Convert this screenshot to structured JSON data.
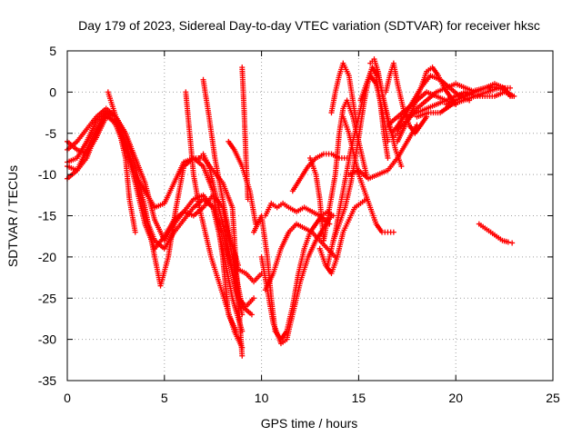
{
  "chart_data": {
    "type": "scatter",
    "title": "Day 179 of 2023, Sidereal Day-to-day VTEC variation (SDTVAR) for receiver hksc",
    "xlabel": "GPS time / hours",
    "ylabel": "SDTVAR / TECUs",
    "xlim": [
      0,
      25
    ],
    "ylim": [
      -35,
      5
    ],
    "xticks": [
      0,
      5,
      10,
      15,
      20,
      25
    ],
    "yticks": [
      -35,
      -30,
      -25,
      -20,
      -15,
      -10,
      -5,
      0,
      5
    ],
    "grid": true,
    "marker": "+",
    "color": "#ff0000",
    "series": [
      {
        "x": [
          0,
          0.5,
          1,
          1.5,
          2,
          2.5,
          3,
          3.5,
          4,
          4.5,
          5,
          5.5,
          6,
          6.5,
          7,
          7.5,
          8,
          8.5,
          9
        ],
        "y": [
          -6,
          -7,
          -7.5,
          -5.5,
          -3,
          -3.5,
          -6,
          -10,
          -15,
          -18,
          -19,
          -17,
          -15.5,
          -14,
          -13,
          -14,
          -17,
          -22,
          -27
        ]
      },
      {
        "x": [
          0,
          0.5,
          1,
          1.5,
          2,
          2.5,
          3,
          3.5,
          4,
          4.5,
          4.8,
          5.2,
          5.6,
          6,
          6.5,
          7,
          7.5,
          8,
          8.5,
          8.8,
          9
        ],
        "y": [
          -10.5,
          -9.5,
          -7,
          -4.5,
          -2.5,
          -3,
          -5,
          -9,
          -14,
          -20,
          -23.5,
          -20,
          -14,
          -9,
          -8,
          -8,
          -9.5,
          -11,
          -14,
          -25,
          -32
        ]
      },
      {
        "x": [
          0,
          0.5,
          1,
          1.5,
          2,
          2.5,
          3,
          3.5,
          4,
          4.5,
          5,
          5.5,
          6,
          6.5,
          7,
          7.5,
          8,
          8.3,
          8.7
        ],
        "y": [
          -8.5,
          -8,
          -6,
          -3.5,
          -2.5,
          -4,
          -7,
          -10,
          -12,
          -14,
          -13.5,
          -11,
          -8.5,
          -8,
          -9,
          -12,
          -20,
          -27,
          -29
        ]
      },
      {
        "x": [
          0,
          0.5,
          1,
          1.5,
          2,
          2.5,
          3,
          3.5,
          4,
          4.5,
          5,
          5.5,
          6,
          6.5,
          7,
          7.5,
          8,
          8.5,
          9
        ],
        "y": [
          -7,
          -6,
          -4.5,
          -3,
          -2,
          -3,
          -5,
          -8,
          -11,
          -15.5,
          -18,
          -16,
          -14.5,
          -13,
          -12.5,
          -14,
          -19,
          -25,
          -29
        ]
      },
      {
        "x": [
          0,
          0.5,
          1,
          1.5,
          2,
          2.5,
          3,
          3.5,
          4,
          4.5,
          5,
          5.5,
          6,
          6.5,
          7,
          7.5,
          8,
          8.5,
          9,
          9.5
        ],
        "y": [
          -9,
          -9.5,
          -8,
          -5,
          -3,
          -3.5,
          -6.5,
          -11,
          -16,
          -19,
          -17.5,
          -15.5,
          -14.5,
          -15,
          -14,
          -12.5,
          -14,
          -20,
          -26,
          -27
        ]
      },
      {
        "x": [
          2.1,
          2.5,
          3,
          3.2,
          3.5
        ],
        "y": [
          0,
          -3,
          -8,
          -13,
          -17
        ]
      },
      {
        "x": [
          6.1,
          6.3,
          6.5,
          6.8,
          7.1,
          7.4,
          7.8,
          8.2,
          8.6,
          9.0
        ],
        "y": [
          0,
          -5,
          -10,
          -14,
          -17,
          -20,
          -23,
          -26,
          -29,
          -31
        ]
      },
      {
        "x": [
          6.8,
          7.0,
          7.3,
          7.6,
          7.9,
          8.2,
          8.5,
          8.8,
          9.2,
          9.6
        ],
        "y": [
          -8,
          -7.5,
          -9,
          -12,
          -15,
          -18,
          -22,
          -25,
          -26,
          -25
        ]
      },
      {
        "x": [
          7.0,
          7.3,
          7.6,
          8.0,
          8.4,
          8.8
        ],
        "y": [
          1.5,
          -3,
          -8,
          -13,
          -18,
          -21
        ]
      },
      {
        "x": [
          8.3,
          8.6,
          9.0,
          9.4,
          9.7
        ],
        "y": [
          -6,
          -7,
          -9,
          -12,
          -16
        ]
      },
      {
        "x": [
          8.5,
          8.8,
          9.2,
          9.6,
          10.0
        ],
        "y": [
          -20,
          -21.5,
          -22,
          -23,
          -22
        ]
      },
      {
        "x": [
          9.0,
          9.1,
          9.2,
          9.3
        ],
        "y": [
          3,
          -2,
          -8,
          -13
        ]
      },
      {
        "x": [
          9.6,
          10.0,
          10.3,
          10.5,
          10.7,
          11.0,
          11.3,
          11.6,
          11.9,
          12.2,
          12.5,
          12.8,
          13.1,
          13.4,
          13.7
        ],
        "y": [
          -17,
          -15,
          -20,
          -25,
          -29,
          -30,
          -29,
          -26,
          -22,
          -19,
          -17,
          -16,
          -15,
          -14.5,
          -15
        ]
      },
      {
        "x": [
          10.0,
          10.3,
          10.6,
          11.0,
          11.3,
          11.6,
          12.0,
          12.4,
          12.8,
          13.2,
          13.6
        ],
        "y": [
          -20,
          -24,
          -28,
          -30.5,
          -30,
          -27,
          -23,
          -20,
          -18,
          -16.5,
          -15
        ]
      },
      {
        "x": [
          10.2,
          10.5,
          10.8,
          11.1,
          11.4,
          11.8,
          12.2,
          12.6,
          13.0,
          13.5
        ],
        "y": [
          -15,
          -13.5,
          -14,
          -13.5,
          -14,
          -14.5,
          -14,
          -14.5,
          -15,
          -16
        ]
      },
      {
        "x": [
          10.2,
          10.6,
          11.0,
          11.4,
          11.8,
          12.2,
          12.6,
          13.0,
          13.4,
          13.8
        ],
        "y": [
          -24,
          -22,
          -19,
          -17,
          -16,
          -16.5,
          -17,
          -18,
          -19,
          -20
        ]
      },
      {
        "x": [
          11.6,
          12.0,
          12.4,
          12.8,
          13.2,
          13.6,
          14.0,
          14.4
        ],
        "y": [
          -12,
          -10.5,
          -9,
          -8,
          -7.5,
          -7.5,
          -8,
          -8
        ]
      },
      {
        "x": [
          12.5,
          12.8,
          13.0,
          13.2
        ],
        "y": [
          -8,
          -10,
          -13,
          -18
        ]
      },
      {
        "x": [
          13.0,
          13.3,
          13.6,
          13.9,
          14.2,
          14.5,
          14.8,
          15.1,
          15.4
        ],
        "y": [
          -19,
          -21,
          -22,
          -20,
          -17,
          -15.5,
          -14,
          -13.5,
          -13
        ]
      },
      {
        "x": [
          13.2,
          13.5,
          13.8,
          14.0,
          14.2,
          14.4,
          14.7,
          15.0,
          15.4
        ],
        "y": [
          -18,
          -14,
          -10,
          -5,
          -2,
          -1,
          -3,
          -6,
          -10
        ]
      },
      {
        "x": [
          13.6,
          13.8,
          14.0,
          14.2,
          14.5,
          14.7,
          14.9
        ],
        "y": [
          -2.5,
          0,
          2,
          3.5,
          2,
          -1,
          -4
        ]
      },
      {
        "x": [
          13.7,
          14.0,
          14.3,
          14.6,
          14.9,
          15.1,
          15.3,
          15.5,
          15.7,
          15.9,
          16.1,
          16.3,
          16.5
        ],
        "y": [
          -18,
          -16,
          -14,
          -11,
          -7,
          -4,
          -1,
          1.5,
          3,
          2,
          -1,
          -5,
          -8
        ]
      },
      {
        "x": [
          13.4,
          13.8,
          14.2,
          14.6,
          15.0,
          15.3,
          15.6,
          15.9,
          16.2,
          16.5
        ],
        "y": [
          -21,
          -17,
          -12,
          -7,
          -3,
          0,
          2,
          1,
          -2,
          -6
        ]
      },
      {
        "x": [
          14.2,
          14.5,
          14.8,
          15.0,
          15.3,
          15.6,
          15.9,
          16.2,
          16.5,
          16.8
        ],
        "y": [
          -3,
          -5,
          -8,
          -10,
          -12,
          -14,
          -16,
          -17,
          -17,
          -17
        ]
      },
      {
        "x": [
          14.5,
          15.0,
          15.5,
          16.0,
          16.5,
          17.0,
          17.5,
          18.0
        ],
        "y": [
          -10,
          -9.5,
          -10.5,
          -10,
          -9.5,
          -8,
          -6,
          -4
        ]
      },
      {
        "x": [
          15.1,
          15.4,
          15.7,
          16.0,
          16.3,
          16.6,
          16.9,
          17.2
        ],
        "y": [
          -1,
          1,
          3,
          2,
          -1,
          -4,
          -7,
          -9
        ]
      },
      {
        "x": [
          15.6,
          15.8,
          16.0,
          16.2,
          16.4,
          16.6,
          16.8,
          17.0,
          17.2
        ],
        "y": [
          3.5,
          4,
          2.5,
          0,
          -2.5,
          -4.5,
          -5.5,
          -5,
          -3
        ]
      },
      {
        "x": [
          16.4,
          16.6,
          16.8,
          17.0,
          17.3,
          17.6,
          17.9,
          18.2,
          18.5
        ],
        "y": [
          0,
          2,
          3.5,
          1,
          -2,
          -4,
          -5,
          -4,
          -3
        ]
      },
      {
        "x": [
          16.5,
          17.0,
          17.5,
          18.0,
          18.5,
          19.0,
          19.5,
          20.0
        ],
        "y": [
          -4,
          -3,
          -2,
          -1,
          0,
          -0.5,
          -1,
          -1.5
        ]
      },
      {
        "x": [
          16.7,
          17.2,
          17.7,
          18.2,
          18.7,
          19.2,
          19.7,
          20.2,
          20.7
        ],
        "y": [
          -5,
          -3.5,
          -1.5,
          0.5,
          2,
          1.5,
          0.5,
          -0.5,
          -1
        ]
      },
      {
        "x": [
          17.0,
          17.4,
          17.8,
          18.2,
          18.5,
          18.8,
          19.1,
          19.4,
          19.7,
          20.0
        ],
        "y": [
          -6,
          -4,
          -2,
          0.5,
          2.5,
          3,
          2,
          0.5,
          -0.5,
          -1.5
        ]
      },
      {
        "x": [
          17.0,
          17.5,
          18.0,
          18.5,
          19.0,
          19.5,
          20.0,
          20.5,
          21.0
        ],
        "y": [
          -4.5,
          -3.5,
          -2,
          -1,
          0,
          0.5,
          1,
          0.5,
          0
        ]
      },
      {
        "x": [
          17.5,
          18.0,
          18.5,
          19.0,
          19.5,
          20.0,
          20.5,
          21.0,
          21.5,
          22.0,
          22.5,
          23.0
        ],
        "y": [
          -3,
          -2.5,
          -2,
          -1.5,
          -1,
          -0.5,
          0,
          -0.5,
          -0.5,
          -0.5,
          0,
          -0.5
        ]
      },
      {
        "x": [
          18.0,
          18.6,
          19.2,
          19.8,
          20.4,
          21.0,
          21.6,
          22.2,
          22.8
        ],
        "y": [
          -3,
          -2.5,
          -2.5,
          -1.5,
          -1,
          -0.5,
          0,
          0.5,
          0.5
        ]
      },
      {
        "x": [
          19.5,
          20.0,
          20.5,
          21.0,
          21.5,
          22.0,
          22.5,
          22.8
        ],
        "y": [
          -1.5,
          -1,
          -0.5,
          0,
          0.5,
          1,
          0.5,
          -0.5
        ]
      },
      {
        "x": [
          20.0,
          20.5,
          21.0,
          21.5,
          22.0,
          22.5,
          22.9
        ],
        "y": [
          -0.5,
          -0.3,
          0.2,
          0.5,
          0.6,
          0.3,
          -0.5
        ]
      },
      {
        "x": [
          21.2,
          21.5,
          21.8,
          22.1,
          22.4,
          22.7,
          22.9
        ],
        "y": [
          -16,
          -16.5,
          -17,
          -17.5,
          -18,
          -18.2,
          -18.3
        ]
      }
    ]
  }
}
